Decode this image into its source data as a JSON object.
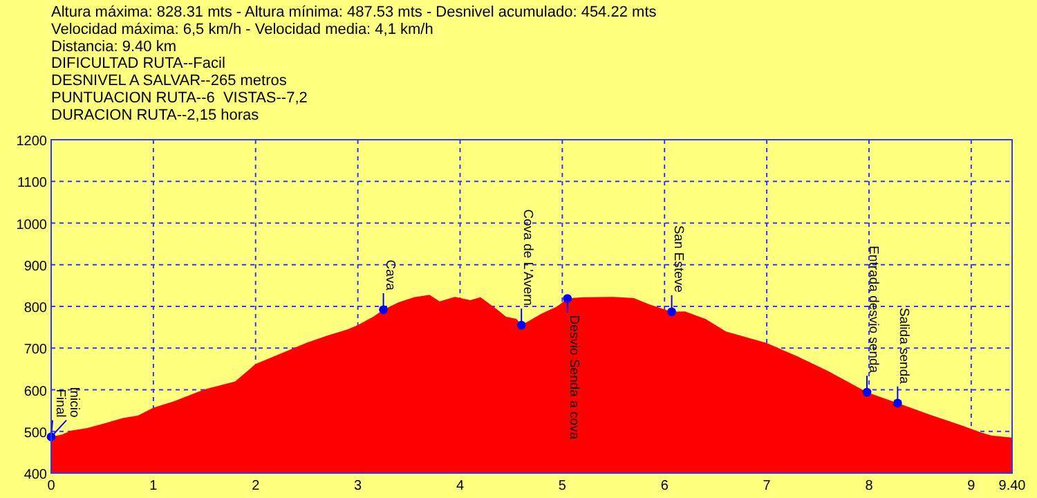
{
  "chart_data": {
    "type": "area",
    "annotations": [
      "Altura máxima: 828.31 mts - Altura mínima: 487.53 mts - Desnivel acumulado: 454.22 mts",
      "Velocidad máxima: 6,5 km/h - Velocidad media: 4,1 km/h",
      "Distancia: 9.40 km",
      "DIFICULTAD RUTA--Facil",
      "DESNIVEL A SALVAR--265 metros",
      "PUNTUACION RUTA--6  VISTAS--7,2",
      "DURACION RUTA--2,15 horas",
      {
        "text": "Inicio",
        "x": 0,
        "y": 487
      },
      {
        "text": "Final",
        "x": 0,
        "y": 487
      },
      {
        "text": "Cava",
        "x": 3.25,
        "y": 792
      },
      {
        "text": "Cova de L'Avern",
        "x": 4.6,
        "y": 755
      },
      {
        "text": "Desvio Senda a cova",
        "x": 5.05,
        "y": 819
      },
      {
        "text": "San Esteve",
        "x": 6.07,
        "y": 787
      },
      {
        "text": "Entrada desvio senda",
        "x": 7.98,
        "y": 594
      },
      {
        "text": "Salida senda",
        "x": 8.28,
        "y": 568
      }
    ],
    "series": [
      {
        "color": "#ff0000",
        "x": [
          0,
          0.1,
          0.2,
          0.35,
          0.5,
          0.7,
          0.85,
          1.0,
          1.2,
          1.5,
          1.8,
          2.0,
          2.2,
          2.5,
          2.7,
          2.9,
          3.0,
          3.15,
          3.25,
          3.4,
          3.55,
          3.7,
          3.8,
          3.95,
          4.1,
          4.2,
          4.35,
          4.45,
          4.55,
          4.6,
          4.65,
          4.8,
          4.95,
          5.05,
          5.2,
          5.5,
          5.7,
          5.85,
          6.07,
          6.2,
          6.4,
          6.6,
          6.9,
          7.0,
          7.3,
          7.6,
          7.98,
          8.28,
          8.6,
          8.9,
          9.1,
          9.2,
          9.4
        ],
        "values": [
          487,
          492,
          502,
          508,
          518,
          532,
          538,
          557,
          572,
          601,
          620,
          662,
          682,
          713,
          730,
          745,
          755,
          775,
          792,
          810,
          822,
          828,
          812,
          823,
          815,
          822,
          795,
          775,
          770,
          757,
          762,
          783,
          800,
          819,
          822,
          823,
          820,
          805,
          787,
          788,
          770,
          740,
          719,
          712,
          680,
          645,
          594,
          568,
          540,
          515,
          497,
          490,
          485
        ]
      },
      {
        "type": "scatter",
        "color": "#0000ff",
        "marker": "circle",
        "x": [
          0,
          3.25,
          4.6,
          5.05,
          6.07,
          7.98,
          8.28
        ],
        "values": [
          487,
          792,
          755,
          819,
          787,
          594,
          568
        ]
      }
    ],
    "xlim": [
      0,
      9.4
    ],
    "xticks": [
      0,
      1,
      2,
      3,
      4,
      5,
      6,
      7,
      8,
      9,
      {
        "value": 9.4,
        "label": "9.40"
      }
    ],
    "ylim": [
      400,
      1200
    ],
    "yticks": [
      400,
      500,
      600,
      700,
      800,
      900,
      1000,
      1100,
      1200
    ],
    "grid": true
  }
}
